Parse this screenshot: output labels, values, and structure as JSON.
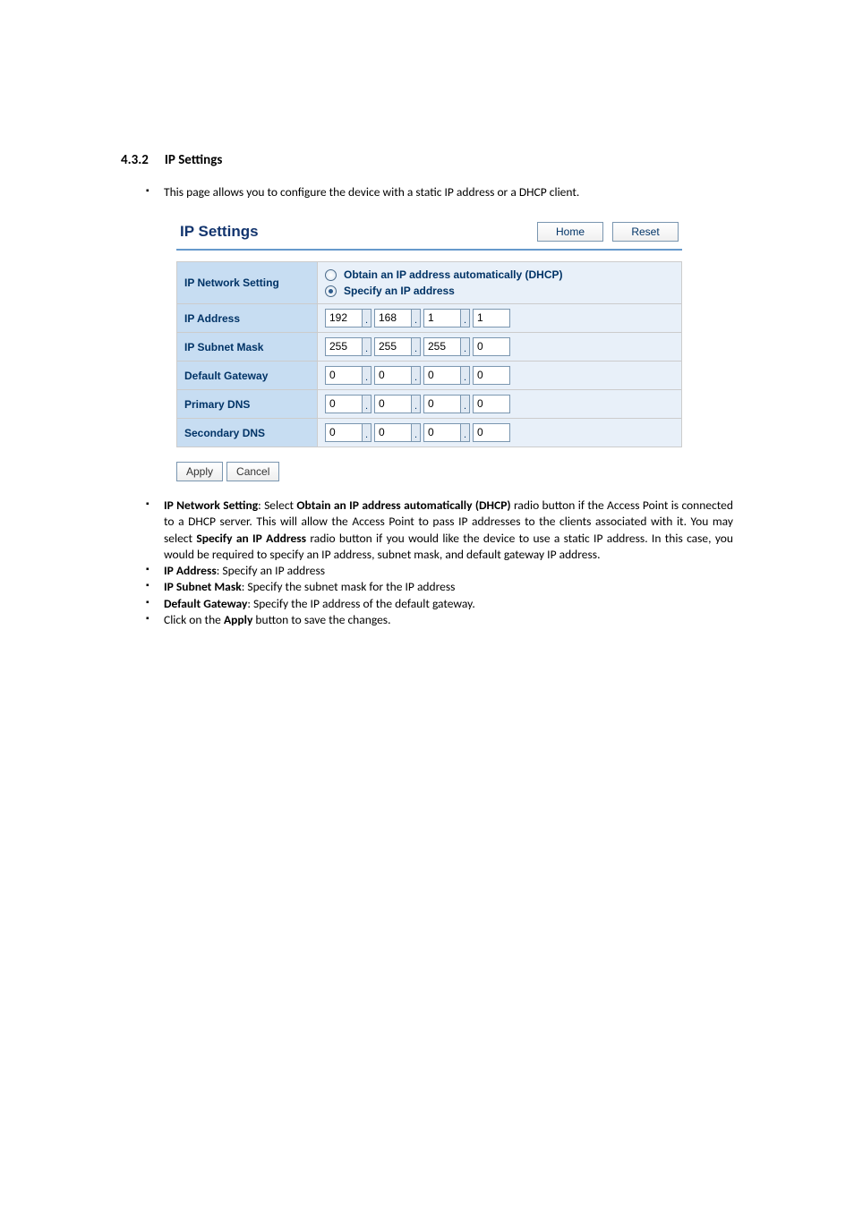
{
  "section": {
    "number": "4.3.2",
    "title": "IP Settings"
  },
  "intro_bullet": "This page allows you to configure the device with a static IP address or a DHCP client.",
  "panel": {
    "title": "IP Settings",
    "home_btn": "Home",
    "reset_btn": "Reset",
    "rows": {
      "network_setting_label": "IP Network Setting",
      "radio_dhcp": "Obtain an IP address automatically (DHCP)",
      "radio_specify": "Specify an IP address",
      "ip_address_label": "IP Address",
      "ip_address": [
        "192",
        "168",
        "1",
        "1"
      ],
      "subnet_label": "IP Subnet Mask",
      "subnet": [
        "255",
        "255",
        "255",
        "0"
      ],
      "gateway_label": "Default Gateway",
      "gateway": [
        "0",
        "0",
        "0",
        "0"
      ],
      "pdns_label": "Primary DNS",
      "pdns": [
        "0",
        "0",
        "0",
        "0"
      ],
      "sdns_label": "Secondary DNS",
      "sdns": [
        "0",
        "0",
        "0",
        "0"
      ]
    },
    "apply_btn": "Apply",
    "cancel_btn": "Cancel"
  },
  "bullets": {
    "b1_bold": "IP Network Setting",
    "b1_mid1": ": Select ",
    "b1_bold2": "Obtain an IP address automatically (DHCP)",
    "b1_mid2": " radio button if the Access Point is connected to a DHCP server. This will allow the Access Point to pass IP addresses to the clients associated with it. You may select ",
    "b1_bold3": "Specify an IP Address",
    "b1_mid3": " radio button if you would like the device to use a static IP address. In this case, you would be required to specify an IP address, subnet mask, and default gateway IP address.",
    "b2_bold": "IP Address",
    "b2_rest": ": Specify an IP address",
    "b3_bold": "IP Subnet Mask",
    "b3_rest": ": Specify the subnet mask for the IP address",
    "b4_bold": "Default Gateway",
    "b4_rest": ": Specify the IP address of the default gateway.",
    "b5_pre": "Click on the ",
    "b5_bold": "Apply",
    "b5_rest": " button to save the changes."
  }
}
